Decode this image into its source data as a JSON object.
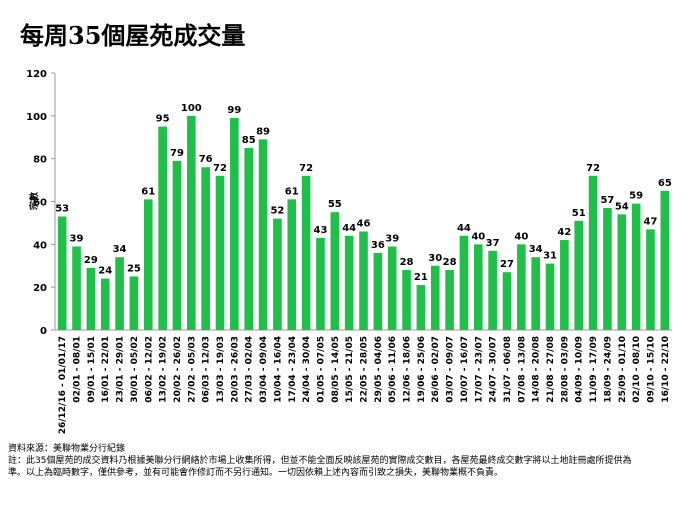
{
  "chart_data": {
    "type": "bar",
    "title": "每周35個屋苑成交量",
    "y_label": "宗數",
    "categories": [
      "26/12/16 - 01/01/17",
      "02/01 - 08/01",
      "09/01 - 15/01",
      "16/01 - 22/01",
      "23/01 - 29/01",
      "30/01 - 05/02",
      "06/02 - 12/02",
      "13/02 - 19/02",
      "20/02 - 26/02",
      "27/02 - 05/03",
      "06/03 - 12/03",
      "13/03 - 19/03",
      "20/03 - 26/03",
      "27/03 - 02/04",
      "03/04 - 09/04",
      "10/04 - 16/04",
      "17/04 - 23/04",
      "24/04 - 30/04",
      "01/05 - 07/05",
      "08/05 - 14/05",
      "15/05 - 21/05",
      "22/05 - 28/05",
      "29/05 - 04/06",
      "05/06 - 11/06",
      "12/06 - 18/06",
      "19/06 - 25/06",
      "26/06 - 02/07",
      "03/07 - 09/07",
      "10/07 - 16/07",
      "17/07 - 23/07",
      "24/07 - 30/07",
      "31/07 - 06/08",
      "07/08 - 13/08",
      "14/08 - 20/08",
      "21/08 - 27/08",
      "28/08 - 03/09",
      "04/09 - 10/09",
      "11/09 - 17/09",
      "18/09 - 24/09",
      "25/09 - 01/10",
      "02/10 - 08/10",
      "09/10 - 15/10",
      "16/10 - 22/10"
    ],
    "values": [
      53,
      39,
      29,
      24,
      34,
      25,
      61,
      95,
      79,
      100,
      76,
      72,
      99,
      85,
      89,
      52,
      61,
      72,
      43,
      55,
      44,
      46,
      36,
      39,
      28,
      21,
      30,
      28,
      44,
      40,
      37,
      27,
      40,
      34,
      31,
      42,
      51,
      72,
      57,
      54,
      59,
      47,
      65
    ],
    "color": "#1fbf4a",
    "ylim": [
      0,
      120
    ],
    "yticks": [
      0,
      20,
      40,
      60,
      80,
      100,
      120
    ],
    "grid": false,
    "source": "資料來源：美聯物業分行紀錄",
    "note": "註：此35個屋苑的成交資料乃根據美聯分行網絡於市場上收集所得，但並不能全面反映該屋苑的實際成交數目，各屋苑最終成交數字將以土地註冊處所提供為準。以上為臨時數字，僅供參考，並有可能會作修訂而不另行通知。一切因依賴上述內容而引致之損失，美聯物業概不負責。"
  }
}
